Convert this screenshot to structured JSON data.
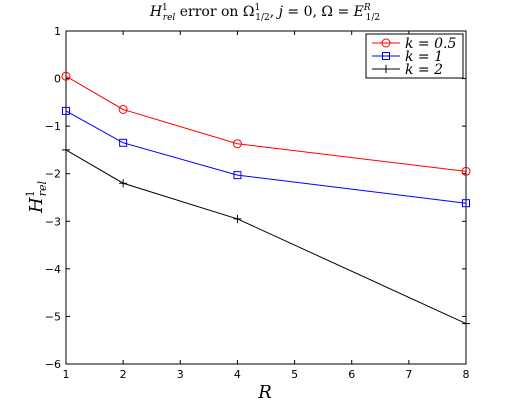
{
  "chart_data": {
    "type": "line",
    "title": "H_rel^1 error on Ω_{1/2}^1, j = 0, Ω = E_{1/2}^R",
    "xlabel": "R",
    "ylabel": "H_rel^1",
    "x": [
      1,
      2,
      4,
      8
    ],
    "xlim": [
      1,
      8
    ],
    "ylim": [
      -6,
      1
    ],
    "xticks": [
      1,
      2,
      3,
      4,
      5,
      6,
      7,
      8
    ],
    "yticks": [
      -6,
      -5,
      -4,
      -3,
      -2,
      -1,
      0,
      1
    ],
    "grid": false,
    "legend_position": "top-right",
    "series": [
      {
        "name": "k = 0.5",
        "values": [
          0.05,
          -0.65,
          -1.37,
          -1.95
        ],
        "color": "#ff0000",
        "marker": "circle"
      },
      {
        "name": "k = 1",
        "values": [
          -0.68,
          -1.35,
          -2.03,
          -2.62
        ],
        "color": "#0000ff",
        "marker": "square"
      },
      {
        "name": "k = 2",
        "values": [
          -1.5,
          -2.2,
          -2.95,
          -5.15
        ],
        "color": "#000000",
        "marker": "plus"
      }
    ]
  }
}
